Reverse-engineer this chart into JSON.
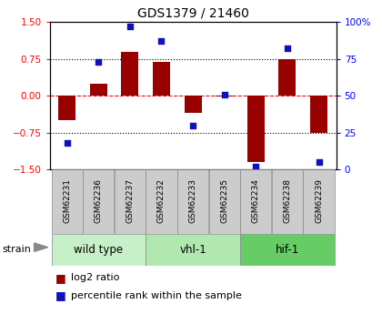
{
  "title": "GDS1379 / 21460",
  "samples": [
    "GSM62231",
    "GSM62236",
    "GSM62237",
    "GSM62232",
    "GSM62233",
    "GSM62235",
    "GSM62234",
    "GSM62238",
    "GSM62239"
  ],
  "log2_ratio": [
    -0.5,
    0.25,
    0.9,
    0.68,
    -0.35,
    -0.02,
    -1.35,
    0.75,
    -0.75
  ],
  "percentile_rank": [
    18,
    73,
    97,
    87,
    30,
    51,
    2,
    82,
    5
  ],
  "group_colors": [
    "#c8f0c8",
    "#b0e8b0",
    "#66cc66"
  ],
  "group_names": [
    "wild type",
    "vhl-1",
    "hif-1"
  ],
  "group_ranges": [
    [
      0,
      3
    ],
    [
      3,
      6
    ],
    [
      6,
      9
    ]
  ],
  "bar_color": "#990000",
  "dot_color": "#1111bb",
  "ylim_left": [
    -1.5,
    1.5
  ],
  "ylim_right": [
    0,
    100
  ],
  "yticks_left": [
    -1.5,
    -0.75,
    0,
    0.75,
    1.5
  ],
  "yticks_right": [
    0,
    25,
    50,
    75,
    100
  ],
  "plot_bg": "#ffffff",
  "label_bg": "#cccccc",
  "figsize": [
    4.2,
    3.45
  ],
  "dpi": 100
}
